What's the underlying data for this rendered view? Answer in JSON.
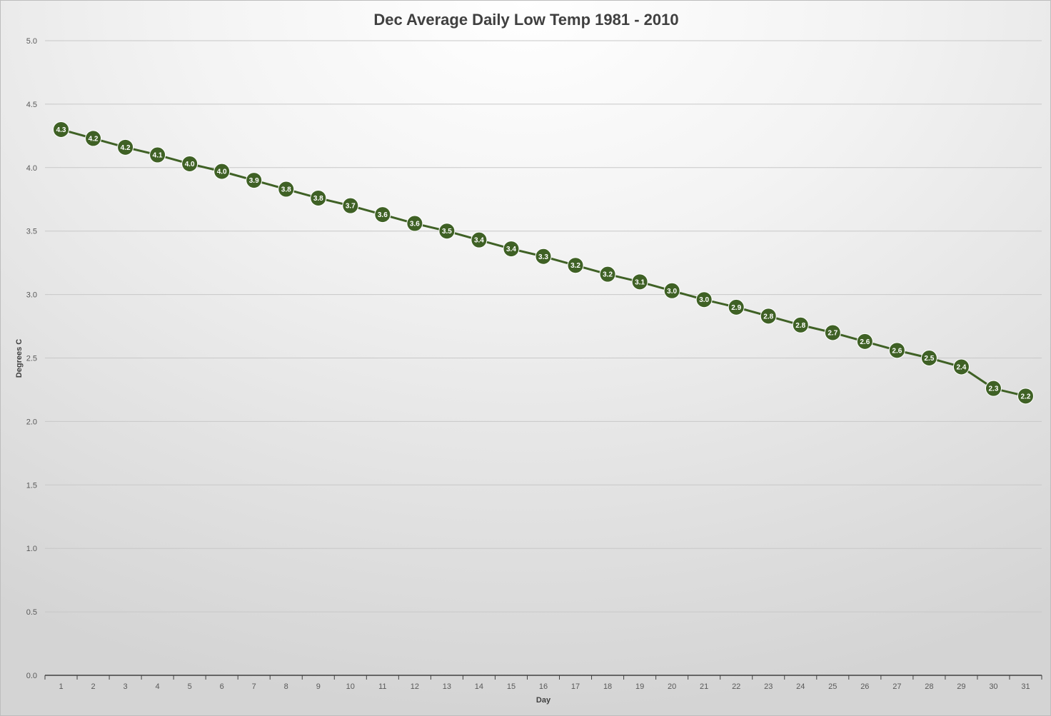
{
  "chart_data": {
    "type": "line",
    "title": "Dec Average Daily Low Temp 1981 - 2010",
    "xlabel": "Day",
    "ylabel": "Degrees C",
    "ylim": [
      0,
      5
    ],
    "yticks": [
      "0.0",
      "0.5",
      "1.0",
      "1.5",
      "2.0",
      "2.5",
      "3.0",
      "3.5",
      "4.0",
      "4.5",
      "5.0"
    ],
    "grid": true,
    "legend": "none",
    "categories": [
      "1",
      "2",
      "3",
      "4",
      "5",
      "6",
      "7",
      "8",
      "9",
      "10",
      "11",
      "12",
      "13",
      "14",
      "15",
      "16",
      "17",
      "18",
      "19",
      "20",
      "21",
      "22",
      "23",
      "24",
      "25",
      "26",
      "27",
      "28",
      "29",
      "30",
      "31"
    ],
    "series": [
      {
        "values": [
          4.3,
          4.23,
          4.16,
          4.1,
          4.03,
          3.97,
          3.9,
          3.83,
          3.76,
          3.7,
          3.63,
          3.56,
          3.5,
          3.43,
          3.36,
          3.3,
          3.23,
          3.16,
          3.1,
          3.03,
          2.96,
          2.9,
          2.83,
          2.76,
          2.7,
          2.63,
          2.56,
          2.5,
          2.43,
          2.26,
          2.2
        ],
        "labels": [
          "4.3",
          "4.2",
          "4.2",
          "4.1",
          "4.0",
          "4.0",
          "3.9",
          "3.8",
          "3.8",
          "3.7",
          "3.6",
          "3.6",
          "3.5",
          "3.4",
          "3.4",
          "3.3",
          "3.2",
          "3.2",
          "3.1",
          "3.0",
          "3.0",
          "2.9",
          "2.8",
          "2.8",
          "2.7",
          "2.6",
          "2.6",
          "2.5",
          "2.4",
          "2.3",
          "2.2"
        ],
        "color": "#3f6125"
      }
    ],
    "colors": {
      "line": "#3f6125",
      "marker": "#3f6125",
      "marker_border": "#ffffff",
      "gridline": "#c8c8c8",
      "axis": "#404040"
    }
  }
}
